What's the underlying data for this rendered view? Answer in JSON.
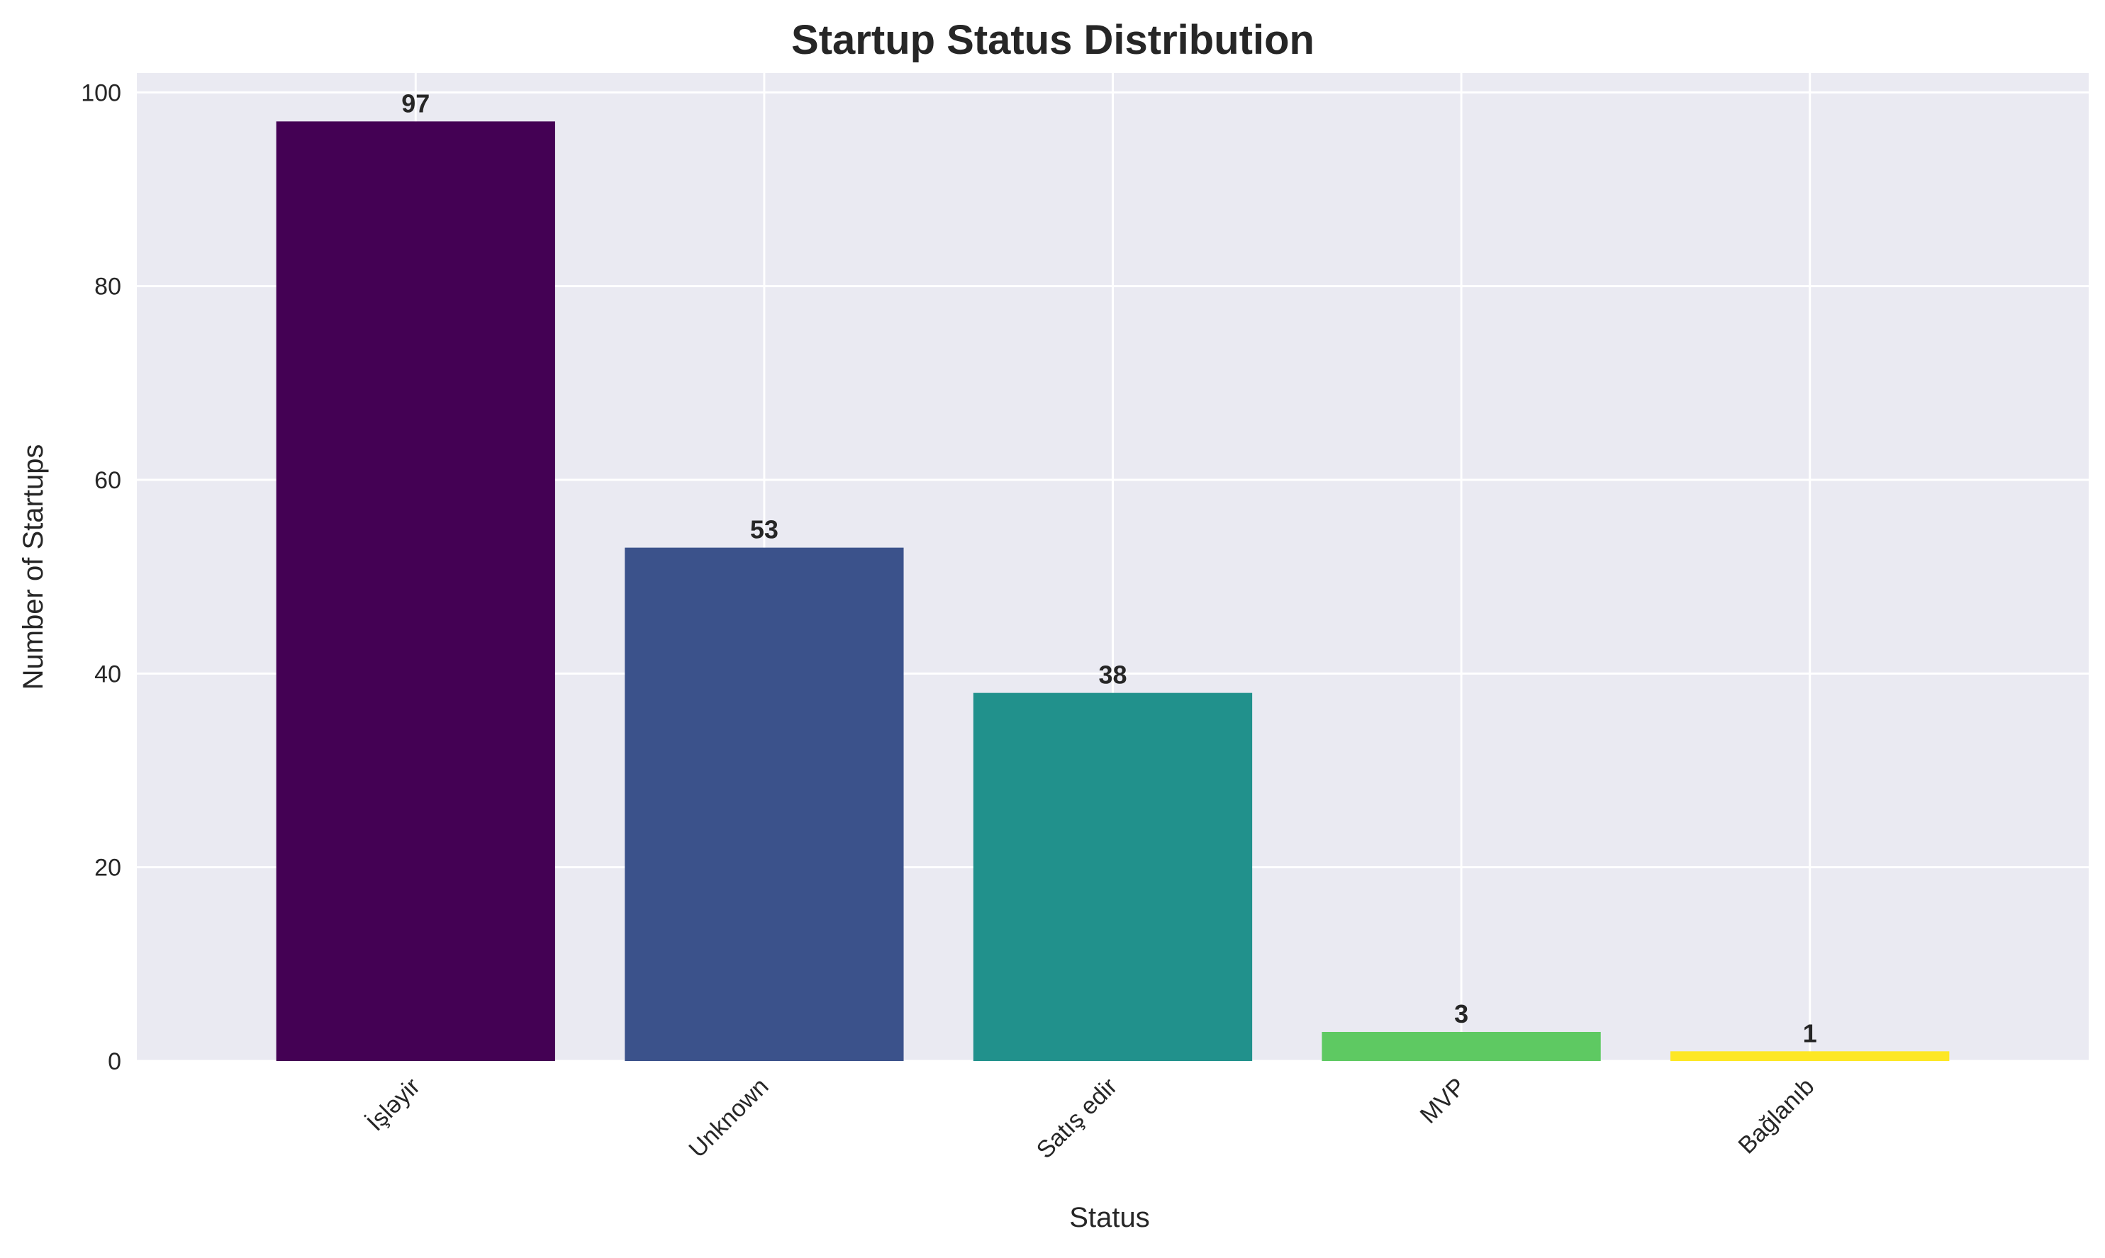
{
  "chart_data": {
    "type": "bar",
    "title": "Startup Status Distribution",
    "xlabel": "Status",
    "ylabel": "Number of Startups",
    "categories": [
      "İşləyir",
      "Unknown",
      "Satış edir",
      "MVP",
      "Bağlanıb"
    ],
    "values": [
      97,
      53,
      38,
      3,
      1
    ],
    "value_labels": [
      "97",
      "53",
      "38",
      "3",
      "1"
    ],
    "bar_colors": [
      "#440154",
      "#3b528b",
      "#21918c",
      "#5ec962",
      "#fde725"
    ],
    "ylim": [
      0,
      102
    ],
    "yticks": [
      0,
      20,
      40,
      60,
      80,
      100
    ],
    "ytick_labels": [
      "0",
      "20",
      "40",
      "60",
      "80",
      "100"
    ],
    "grid": true,
    "legend": "none",
    "background_color": "#eaeaf2",
    "grid_color": "#ffffff",
    "text_color": "#262626"
  }
}
